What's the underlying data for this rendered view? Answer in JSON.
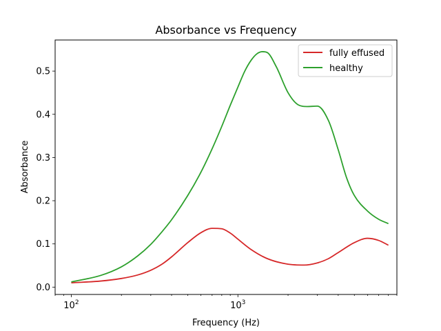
{
  "chart_data": {
    "type": "line",
    "title": "Absorbance vs Frequency",
    "xlabel": "Frequency (Hz)",
    "ylabel": "Absorbance",
    "xscale": "log",
    "xlim": [
      80,
      9000
    ],
    "ylim": [
      -0.017,
      0.572
    ],
    "x_ticks": [
      {
        "value": 100,
        "base": "10",
        "exp": "2"
      },
      {
        "value": 1000,
        "base": "10",
        "exp": "3"
      }
    ],
    "y_ticks": [
      {
        "value": 0.0,
        "label": "0.0"
      },
      {
        "value": 0.1,
        "label": "0.1"
      },
      {
        "value": 0.2,
        "label": "0.2"
      },
      {
        "value": 0.3,
        "label": "0.3"
      },
      {
        "value": 0.4,
        "label": "0.4"
      },
      {
        "value": 0.5,
        "label": "0.5"
      }
    ],
    "grid": false,
    "legend_position": "top-right",
    "series": [
      {
        "name": "fully effused",
        "color": "#d62728",
        "x": [
          100,
          150,
          200,
          250,
          300,
          350,
          400,
          500,
          600,
          700,
          800,
          900,
          1000,
          1200,
          1500,
          2000,
          2500,
          3000,
          3500,
          4000,
          5000,
          6000,
          7000,
          8000
        ],
        "y": [
          0.01,
          0.014,
          0.02,
          0.028,
          0.039,
          0.053,
          0.07,
          0.103,
          0.126,
          0.136,
          0.135,
          0.125,
          0.111,
          0.087,
          0.066,
          0.053,
          0.051,
          0.056,
          0.066,
          0.08,
          0.103,
          0.113,
          0.108,
          0.097
        ]
      },
      {
        "name": "healthy",
        "color": "#2ca02c",
        "x": [
          100,
          150,
          200,
          250,
          300,
          350,
          400,
          500,
          600,
          700,
          800,
          900,
          1000,
          1100,
          1200,
          1300,
          1400,
          1500,
          1700,
          2000,
          2300,
          2600,
          3000,
          3500,
          4000,
          4500,
          5000,
          6000,
          7000,
          8000
        ],
        "y": [
          0.012,
          0.027,
          0.047,
          0.072,
          0.099,
          0.128,
          0.156,
          0.212,
          0.266,
          0.32,
          0.372,
          0.421,
          0.463,
          0.5,
          0.525,
          0.54,
          0.545,
          0.543,
          0.51,
          0.45,
          0.422,
          0.418,
          0.419,
          0.385,
          0.318,
          0.252,
          0.212,
          0.176,
          0.157,
          0.147
        ]
      }
    ]
  }
}
